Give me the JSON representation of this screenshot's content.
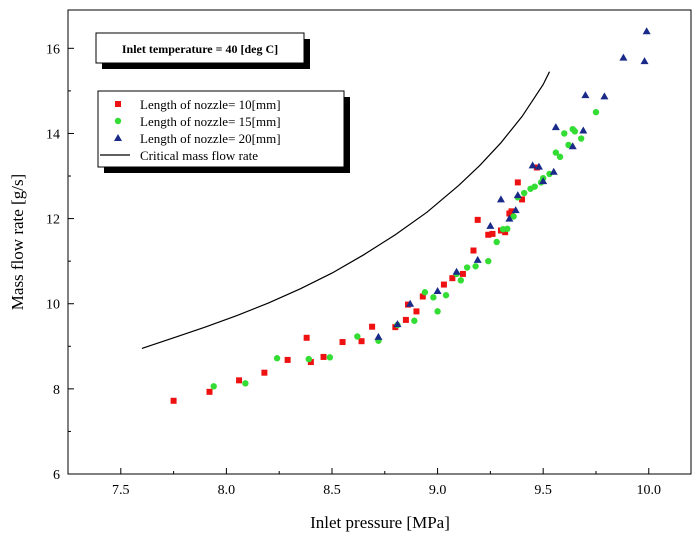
{
  "chart_data": {
    "type": "scatter",
    "title": "",
    "xlabel": "Inlet pressure [MPa]",
    "ylabel": "Mass flow rate [g/s]",
    "xlim": [
      7.25,
      10.2
    ],
    "ylim": [
      6,
      16.9
    ],
    "x_ticks": [
      7.5,
      8.0,
      8.5,
      9.0,
      9.5,
      10.0
    ],
    "x_tick_labels": [
      "7.5",
      "8.0",
      "8.5",
      "9.0",
      "9.5",
      "10.0"
    ],
    "y_ticks": [
      6,
      8,
      10,
      12,
      14,
      16
    ],
    "y_tick_labels": [
      "6",
      "8",
      "10",
      "12",
      "14",
      "16"
    ],
    "grid": false,
    "annotation": "Inlet temperature = 40 [deg C]",
    "legend_position": "upper-left",
    "series": [
      {
        "name": "Length of nozzle= 10[mm]",
        "marker": "square",
        "color": "#ee1111",
        "points": [
          [
            7.75,
            7.72
          ],
          [
            7.92,
            7.93
          ],
          [
            8.06,
            8.2
          ],
          [
            8.18,
            8.38
          ],
          [
            8.29,
            8.68
          ],
          [
            8.38,
            9.2
          ],
          [
            8.4,
            8.63
          ],
          [
            8.46,
            8.75
          ],
          [
            8.55,
            9.1
          ],
          [
            8.64,
            9.12
          ],
          [
            8.69,
            9.46
          ],
          [
            8.8,
            9.45
          ],
          [
            8.85,
            9.62
          ],
          [
            8.86,
            9.98
          ],
          [
            8.9,
            9.82
          ],
          [
            8.93,
            10.17
          ],
          [
            9.03,
            10.45
          ],
          [
            9.07,
            10.6
          ],
          [
            9.12,
            10.7
          ],
          [
            9.17,
            11.25
          ],
          [
            9.19,
            11.97
          ],
          [
            9.24,
            11.62
          ],
          [
            9.26,
            11.64
          ],
          [
            9.3,
            11.72
          ],
          [
            9.32,
            11.68
          ],
          [
            9.34,
            12.12
          ],
          [
            9.35,
            12.17
          ],
          [
            9.38,
            12.85
          ],
          [
            9.4,
            12.45
          ],
          [
            9.47,
            13.2
          ]
        ]
      },
      {
        "name": "Length of nozzle= 15[mm]",
        "marker": "circle",
        "color": "#33dd33",
        "points": [
          [
            7.94,
            8.06
          ],
          [
            8.09,
            8.13
          ],
          [
            8.24,
            8.72
          ],
          [
            8.39,
            8.7
          ],
          [
            8.49,
            8.74
          ],
          [
            8.62,
            9.23
          ],
          [
            8.72,
            9.13
          ],
          [
            8.81,
            9.5
          ],
          [
            8.89,
            9.6
          ],
          [
            8.94,
            10.27
          ],
          [
            8.98,
            10.15
          ],
          [
            9.0,
            9.82
          ],
          [
            9.04,
            10.2
          ],
          [
            9.09,
            10.7
          ],
          [
            9.11,
            10.55
          ],
          [
            9.14,
            10.85
          ],
          [
            9.18,
            10.88
          ],
          [
            9.24,
            11.0
          ],
          [
            9.28,
            11.45
          ],
          [
            9.31,
            11.75
          ],
          [
            9.33,
            11.76
          ],
          [
            9.36,
            12.05
          ],
          [
            9.38,
            12.5
          ],
          [
            9.41,
            12.6
          ],
          [
            9.44,
            12.7
          ],
          [
            9.46,
            12.75
          ],
          [
            9.49,
            12.85
          ],
          [
            9.5,
            12.95
          ],
          [
            9.53,
            13.05
          ],
          [
            9.56,
            13.55
          ],
          [
            9.58,
            13.45
          ],
          [
            9.6,
            14.0
          ],
          [
            9.62,
            13.73
          ],
          [
            9.64,
            14.1
          ],
          [
            9.65,
            14.05
          ],
          [
            9.68,
            13.88
          ],
          [
            9.75,
            14.5
          ]
        ]
      },
      {
        "name": "Length of nozzle= 20[mm]",
        "marker": "triangle",
        "color": "#1a2a88",
        "points": [
          [
            8.72,
            9.22
          ],
          [
            8.81,
            9.52
          ],
          [
            8.87,
            10.0
          ],
          [
            9.0,
            10.3
          ],
          [
            9.09,
            10.75
          ],
          [
            9.19,
            11.03
          ],
          [
            9.25,
            11.83
          ],
          [
            9.3,
            12.45
          ],
          [
            9.34,
            12.0
          ],
          [
            9.37,
            12.2
          ],
          [
            9.38,
            12.55
          ],
          [
            9.45,
            13.25
          ],
          [
            9.48,
            13.22
          ],
          [
            9.5,
            12.88
          ],
          [
            9.55,
            13.1
          ],
          [
            9.56,
            14.15
          ],
          [
            9.64,
            13.7
          ],
          [
            9.69,
            14.07
          ],
          [
            9.7,
            14.9
          ],
          [
            9.79,
            14.87
          ],
          [
            9.88,
            15.78
          ],
          [
            9.98,
            15.7
          ],
          [
            9.99,
            16.4
          ]
        ]
      },
      {
        "name": "Critical mass flow rate",
        "marker": "line",
        "color": "#000000",
        "points": [
          [
            7.6,
            8.95
          ],
          [
            7.75,
            9.2
          ],
          [
            7.9,
            9.45
          ],
          [
            8.05,
            9.72
          ],
          [
            8.2,
            10.02
          ],
          [
            8.35,
            10.35
          ],
          [
            8.5,
            10.72
          ],
          [
            8.65,
            11.15
          ],
          [
            8.8,
            11.62
          ],
          [
            8.95,
            12.15
          ],
          [
            9.1,
            12.78
          ],
          [
            9.2,
            13.25
          ],
          [
            9.3,
            13.78
          ],
          [
            9.4,
            14.4
          ],
          [
            9.5,
            15.15
          ],
          [
            9.53,
            15.45
          ]
        ]
      }
    ]
  }
}
